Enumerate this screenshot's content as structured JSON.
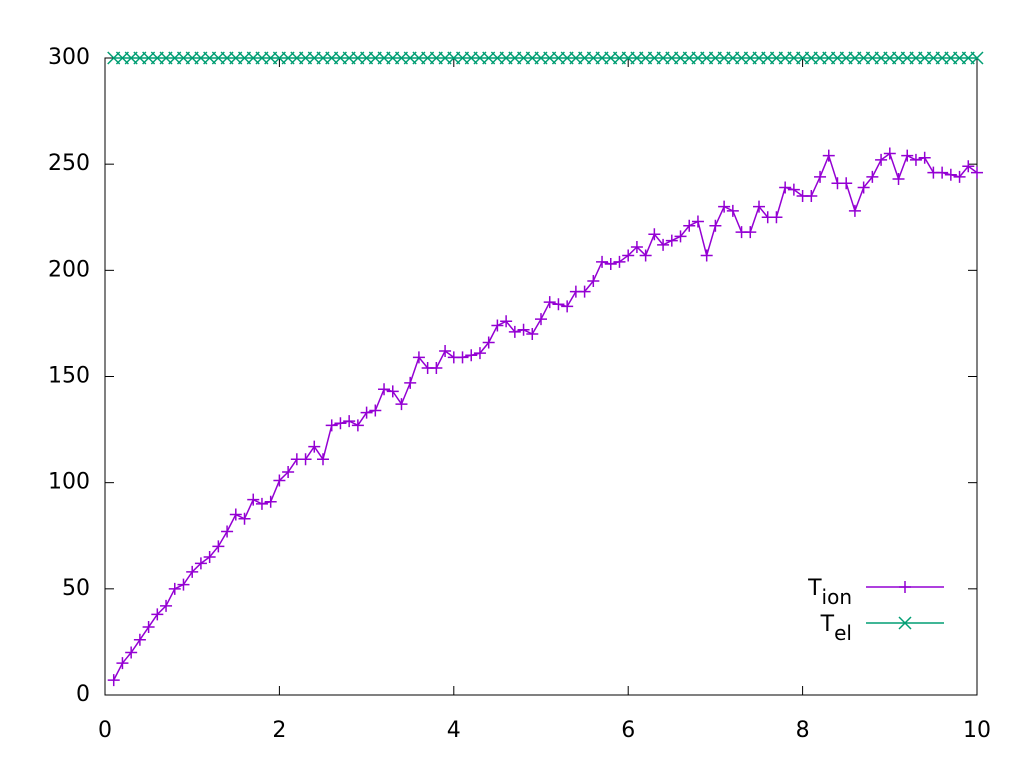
{
  "chart_data": {
    "type": "line",
    "x": [
      0.1,
      0.2,
      0.3,
      0.4,
      0.5,
      0.6,
      0.7,
      0.8,
      0.9,
      1.0,
      1.1,
      1.2,
      1.3,
      1.4,
      1.5,
      1.6,
      1.7,
      1.8,
      1.9,
      2.0,
      2.1,
      2.2,
      2.3,
      2.4,
      2.5,
      2.6,
      2.7,
      2.8,
      2.9,
      3.0,
      3.1,
      3.2,
      3.3,
      3.4,
      3.5,
      3.6,
      3.7,
      3.8,
      3.9,
      4.0,
      4.1,
      4.2,
      4.3,
      4.4,
      4.5,
      4.6,
      4.7,
      4.8,
      4.9,
      5.0,
      5.1,
      5.2,
      5.3,
      5.4,
      5.5,
      5.6,
      5.7,
      5.8,
      5.9,
      6.0,
      6.1,
      6.2,
      6.3,
      6.4,
      6.5,
      6.6,
      6.7,
      6.8,
      6.9,
      7.0,
      7.1,
      7.2,
      7.3,
      7.4,
      7.5,
      7.6,
      7.7,
      7.8,
      7.9,
      8.0,
      8.1,
      8.2,
      8.3,
      8.4,
      8.5,
      8.6,
      8.7,
      8.8,
      8.9,
      9.0,
      9.1,
      9.2,
      9.3,
      9.4,
      9.5,
      9.6,
      9.7,
      9.8,
      9.9,
      10.0
    ],
    "series": [
      {
        "name": "T_ion",
        "color": "#9400d3",
        "marker": "plus",
        "values": [
          7,
          15,
          20,
          26,
          32,
          38,
          42,
          50,
          52,
          58,
          62,
          65,
          70,
          77,
          85,
          83,
          92,
          90,
          91,
          101,
          105,
          111,
          111,
          117,
          111,
          127,
          128,
          129,
          127,
          133,
          134,
          144,
          143,
          137,
          147,
          159,
          154,
          154,
          162,
          159,
          159,
          160,
          161,
          166,
          174,
          176,
          171,
          172,
          170,
          177,
          185,
          184,
          183,
          190,
          190,
          195,
          204,
          203,
          204,
          207,
          211,
          207,
          217,
          212,
          214,
          216,
          221,
          223,
          207,
          221,
          230,
          228,
          218,
          218,
          230,
          225,
          225,
          239,
          238,
          235,
          235,
          244,
          254,
          241,
          241,
          228,
          239,
          244,
          252,
          255,
          243,
          254,
          252,
          253,
          246,
          246,
          245,
          244,
          249,
          246
        ]
      },
      {
        "name": "T_el",
        "color": "#009e73",
        "marker": "cross",
        "values": [
          300,
          300,
          300,
          300,
          300,
          300,
          300,
          300,
          300,
          300,
          300,
          300,
          300,
          300,
          300,
          300,
          300,
          300,
          300,
          300,
          300,
          300,
          300,
          300,
          300,
          300,
          300,
          300,
          300,
          300,
          300,
          300,
          300,
          300,
          300,
          300,
          300,
          300,
          300,
          300,
          300,
          300,
          300,
          300,
          300,
          300,
          300,
          300,
          300,
          300,
          300,
          300,
          300,
          300,
          300,
          300,
          300,
          300,
          300,
          300,
          300,
          300,
          300,
          300,
          300,
          300,
          300,
          300,
          300,
          300,
          300,
          300,
          300,
          300,
          300,
          300,
          300,
          300,
          300,
          300,
          300,
          300,
          300,
          300,
          300,
          300,
          300,
          300,
          300,
          300,
          300,
          300,
          300,
          300,
          300,
          300,
          300,
          300,
          300,
          300
        ]
      }
    ],
    "xlim": [
      0,
      10
    ],
    "xticks": [
      0,
      2,
      4,
      6,
      8,
      10
    ],
    "ylim": [
      0,
      300
    ],
    "yticks": [
      0,
      50,
      100,
      150,
      200,
      250,
      300
    ],
    "legend": "bottom-right",
    "grid": false
  }
}
